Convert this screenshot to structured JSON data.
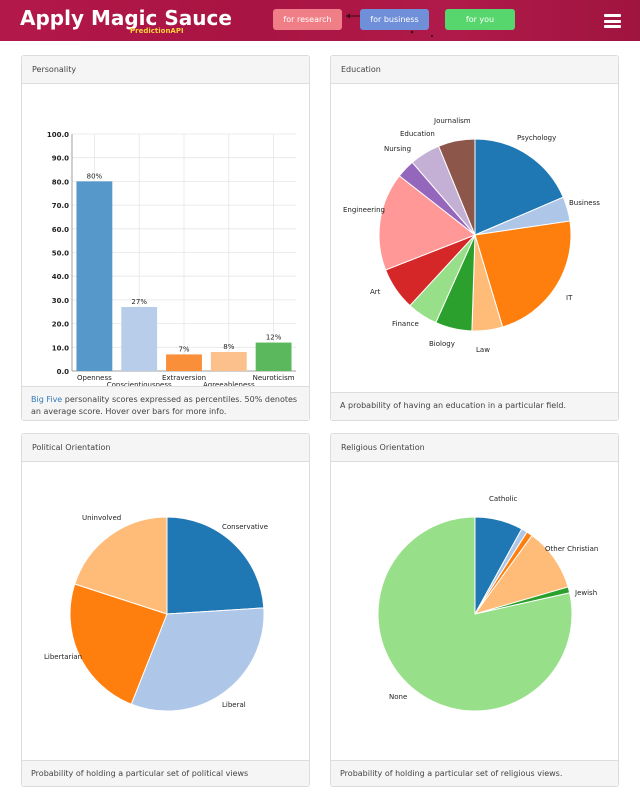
{
  "header": {
    "brand": "Apply Magic Sauce",
    "brand_sub": "PredictionAPI",
    "nav": {
      "research": "for research",
      "business": "for business",
      "you": "for you"
    },
    "menu_icon": "hamburger-menu-icon"
  },
  "panels": {
    "personality": {
      "title": "Personality",
      "foot_link": "Big Five",
      "foot_text": " personality scores expressed as percentiles. 50% denotes an average score. Hover over bars for more info."
    },
    "education": {
      "title": "Education",
      "foot_text": "A probability of having an education in a particular field."
    },
    "political": {
      "title": "Political Orientation",
      "foot_text": "Probability of holding a particular set of political views"
    },
    "religious": {
      "title": "Religious Orientation",
      "foot_text": "Probability of holding a particular set of religious views."
    }
  },
  "chart_data": [
    {
      "type": "bar",
      "title": "Personality",
      "categories": [
        "Openness",
        "Conscientiousness",
        "Extraversion",
        "Agreeableness",
        "Neuroticism"
      ],
      "values": [
        80,
        27,
        7,
        8,
        12
      ],
      "value_labels": [
        "80%",
        "27%",
        "7%",
        "8%",
        "12%"
      ],
      "colors": [
        "#5598c9",
        "#b7cdea",
        "#f98f38",
        "#fbc08b",
        "#5cb85c"
      ],
      "yticks": [
        "0.0",
        "10.0",
        "20.0",
        "30.0",
        "40.0",
        "50.0",
        "60.0",
        "70.0",
        "80.0",
        "90.0",
        "100.0"
      ],
      "ylim": [
        0,
        100
      ]
    },
    {
      "type": "pie",
      "title": "Education",
      "labels": [
        "Psychology",
        "Business",
        "IT",
        "Law",
        "Biology",
        "Finance",
        "Art",
        "Engineering",
        "Nursing",
        "Education",
        "Journalism"
      ],
      "values": [
        18,
        4,
        22,
        5,
        6,
        5,
        7,
        16,
        3,
        5,
        6
      ],
      "colors": [
        "#1f77b4",
        "#aec7e8",
        "#ff7f0e",
        "#ffbb78",
        "#2ca02c",
        "#98df8a",
        "#d62728",
        "#ff9896",
        "#9467bd",
        "#c5b0d5",
        "#8c564b"
      ]
    },
    {
      "type": "pie",
      "title": "Political Orientation",
      "labels": [
        "Conservative",
        "Liberal",
        "Libertarian",
        "Uninvolved"
      ],
      "values": [
        24,
        32,
        24,
        20
      ],
      "colors": [
        "#1f77b4",
        "#aec7e8",
        "#ff7f0e",
        "#ffbb78"
      ]
    },
    {
      "type": "pie",
      "title": "Religious Orientation",
      "labels": [
        "Catholic",
        "Other Christian",
        "Jewish",
        "None"
      ],
      "values": [
        8,
        2.3,
        11,
        78.7
      ],
      "colors": [
        "#1f77b4",
        "#aec7e8",
        "#ff7f0e",
        "#ffbb78",
        "#2ca02c",
        "#98df8a"
      ],
      "slice_values": [
        8,
        1,
        1,
        10.5,
        1,
        78.5
      ]
    }
  ]
}
